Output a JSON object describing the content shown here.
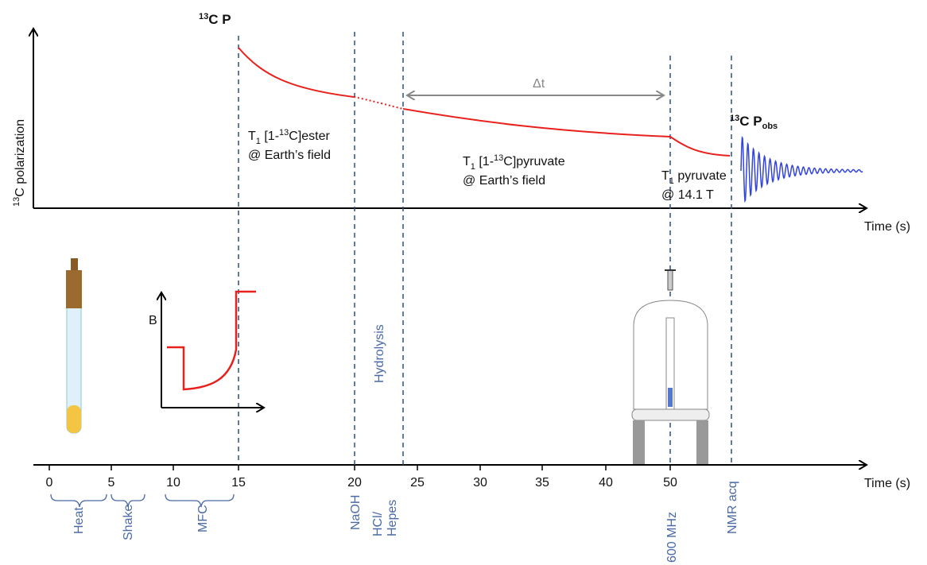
{
  "top_label": {
    "sup": "13",
    "text": "C P"
  },
  "y_axis_label": {
    "sup": "13",
    "text": "C polarization"
  },
  "time_label_top": "Time (s)",
  "delta_t": "Δt",
  "ester_label": {
    "t": "T",
    "sub": "1",
    "pre": " [1-",
    "sup": "13",
    "post": "C]ester",
    "line2": "@ Earth’s field"
  },
  "pyruvate_label": {
    "t": "T",
    "sub": "1",
    "pre": " [1-",
    "sup": "13",
    "post": "C]pyruvate",
    "line2": "@ Earth’s field"
  },
  "pyruvate_field_label": {
    "t": "T",
    "sub": "1",
    "text": " pyruvate",
    "line2": "@ 14.1 T"
  },
  "observed_label": {
    "sup": "13",
    "text": "C P",
    "sub": "obs"
  },
  "field_axis_label": "B",
  "hydrolysis_label": "Hydrolysis",
  "timeline": {
    "ticks": [
      0,
      5,
      10,
      15,
      20,
      25,
      30,
      35,
      40,
      50
    ],
    "axis_label": "Time (s)",
    "steps": [
      "Heat",
      "Shake",
      "MFC",
      "NaOH",
      [
        "HCl/",
        "Hepes"
      ],
      "600 MHz",
      "NMR acq"
    ]
  }
}
